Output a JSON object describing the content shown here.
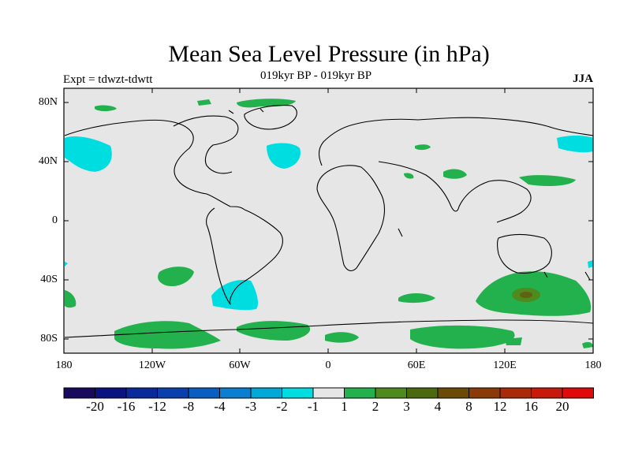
{
  "header": {
    "title": "Mean Sea Level Pressure (in hPa)",
    "subtitle": "019kyr BP - 019kyr BP",
    "experiment": "Expt = tdwzt-tdwtt",
    "season": "JJA"
  },
  "axes": {
    "lat_labels": [
      "80N",
      "40N",
      "0",
      "40S",
      "80S"
    ],
    "lon_labels": [
      "180",
      "120W",
      "60W",
      "0",
      "60E",
      "120E",
      "180"
    ]
  },
  "colorbar": {
    "labels": [
      "-20",
      "-16",
      "-12",
      "-8",
      "-4",
      "-3",
      "-2",
      "-1",
      "1",
      "2",
      "3",
      "4",
      "8",
      "12",
      "16",
      "20"
    ],
    "colors": [
      "#1a0a5e",
      "#0b1380",
      "#0a2a9c",
      "#0a3fae",
      "#0a5ec2",
      "#0a7ed0",
      "#00a8d8",
      "#00dde0",
      "#e6e6e6",
      "#22b14c",
      "#4f8a1e",
      "#4b6a10",
      "#6b4a08",
      "#8a3a06",
      "#a82a08",
      "#c81a0a",
      "#e00a0a"
    ]
  },
  "colors": {
    "background_field": "#e6e6e6",
    "negative_light": "#00dde0",
    "positive_light": "#22b14c",
    "positive_mid": "#4f8a1e",
    "positive_dark": "#6b4a08"
  }
}
